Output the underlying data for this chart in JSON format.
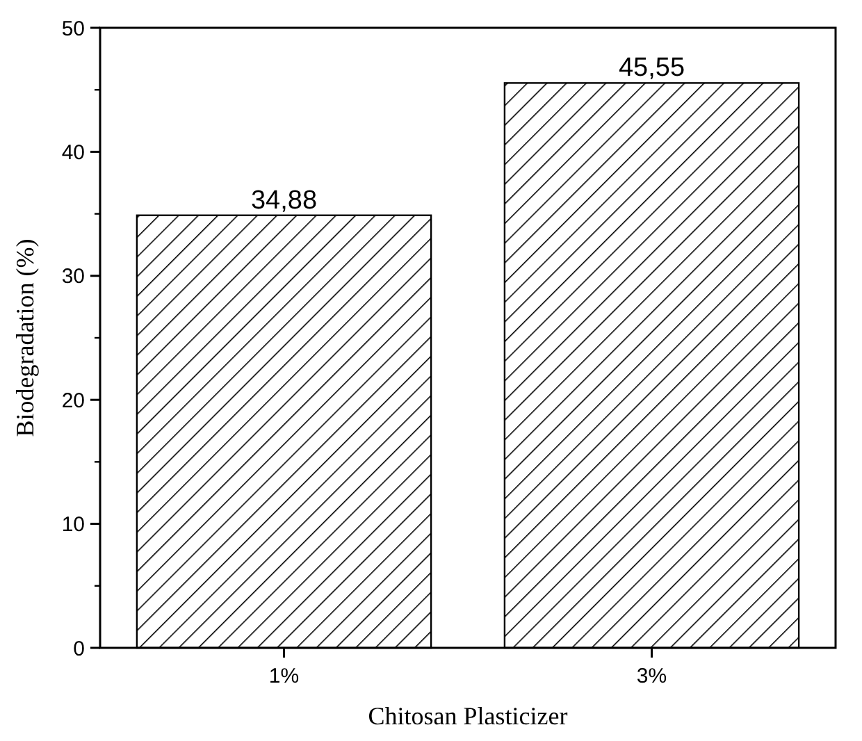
{
  "chart_data": {
    "type": "bar",
    "xlabel": "Chitosan Plasticizer",
    "ylabel": "Biodegradation (%)",
    "categories": [
      "1%",
      "3%"
    ],
    "values": [
      34.88,
      45.55
    ],
    "value_labels": [
      "34,88",
      "45,55"
    ],
    "color": "#000000",
    "ylim": [
      0,
      50
    ],
    "yticks": [
      0,
      10,
      20,
      30,
      40,
      50
    ],
    "grid": false
  }
}
